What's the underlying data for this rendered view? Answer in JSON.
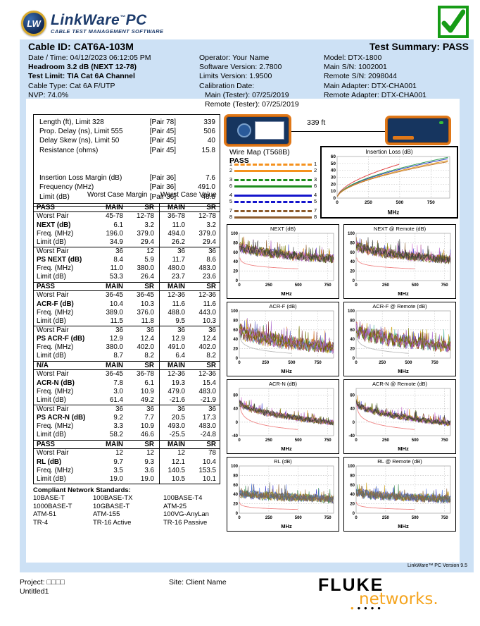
{
  "logo": {
    "badge": "LW",
    "title": "LinkWare",
    "tm": "™",
    "pc": "PC",
    "subtitle": "CABLE TEST MANAGEMENT SOFTWARE"
  },
  "header": {
    "cable_id": "Cable ID: CAT6A-103M",
    "test_summary": "Test Summary: PASS",
    "left_lines": [
      {
        "text": "Date / Time: 04/12/2023  06:12:05 PM",
        "bold": false
      },
      {
        "text": "Headroom 3.2 dB (NEXT 12-78)",
        "bold": true
      },
      {
        "text": "Test Limit: TIA Cat 6A Channel",
        "bold": true
      },
      {
        "text": "Cable Type: Cat 6A F/UTP",
        "bold": false
      },
      {
        "text": "NVP: 74.0%",
        "bold": false
      }
    ],
    "mid_lines": [
      {
        "text": "Operator: Your Name",
        "indent": false
      },
      {
        "text": "Software Version: 2.7800",
        "indent": false
      },
      {
        "text": "Limits Version: 1.9500",
        "indent": false
      },
      {
        "text": "Calibration Date:",
        "indent": false
      },
      {
        "text": "Main (Tester): 07/25/2019",
        "indent": true
      },
      {
        "text": "Remote (Tester): 07/25/2019",
        "indent": true
      }
    ],
    "right_lines": [
      "Model: DTX-1800",
      "Main S/N: 1002001",
      "Remote S/N: 2098044",
      "Main Adapter: DTX-CHA001",
      "Remote Adapter: DTX-CHA001"
    ]
  },
  "summary_box": {
    "rows": [
      {
        "label": "Length (ft), Limit 328",
        "pair": "[Pair 78]",
        "value": "339"
      },
      {
        "label": "Prop. Delay (ns), Limit 555",
        "pair": "[Pair 45]",
        "value": "506"
      },
      {
        "label": "Delay Skew (ns), Limit 50",
        "pair": "[Pair 45]",
        "value": "40"
      },
      {
        "label": "Resistance (ohms)",
        "pair": "[Pair 45]",
        "value": "15.8"
      },
      {
        "label": "",
        "pair": "",
        "value": ""
      },
      {
        "label": "",
        "pair": "",
        "value": ""
      },
      {
        "label": "Insertion Loss Margin (dB)",
        "pair": "[Pair 36]",
        "value": "7.6"
      },
      {
        "label": "Frequency (MHz)",
        "pair": "[Pair 36]",
        "value": "491.0"
      },
      {
        "label": "Limit (dB)",
        "pair": "[Pair 36]",
        "value": "48.8"
      }
    ]
  },
  "link_graphic": {
    "length_label": "339 ft"
  },
  "wiremap": {
    "title": "Wire Map (T568B)",
    "status": "PASS",
    "wires": [
      {
        "pin": "1",
        "color": "#f5921e",
        "dashed": true
      },
      {
        "pin": "2",
        "color": "#f5921e",
        "dashed": false
      },
      {
        "pin": "3",
        "color": "#1e8c1e",
        "dashed": true
      },
      {
        "pin": "6",
        "color": "#1e8c1e",
        "dashed": false
      },
      {
        "pin": "4",
        "color": "#1414cc",
        "dashed": false
      },
      {
        "pin": "5",
        "color": "#1414cc",
        "dashed": true
      },
      {
        "pin": "7",
        "color": "#8b5a2b",
        "dashed": true
      },
      {
        "pin": "8",
        "color": "#8b5a2b",
        "dashed": false
      },
      {
        "pin": "S",
        "color": "#444444",
        "dashed": false
      }
    ]
  },
  "col_headers": {
    "margin": "Worst Case Margin",
    "value": "Worst Case Value"
  },
  "tables": [
    {
      "status": "PASS",
      "cols": [
        "MAIN",
        "SR",
        "MAIN",
        "SR"
      ],
      "groups": [
        {
          "rows": [
            {
              "label": "Worst Pair",
              "bold": false,
              "vals": [
                "45-78",
                "12-78",
                "36-78",
                "12-78"
              ]
            },
            {
              "label": "NEXT (dB)",
              "bold": true,
              "vals": [
                "6.1",
                "3.2",
                "11.0",
                "3.2"
              ]
            },
            {
              "label": "Freq. (MHz)",
              "bold": false,
              "vals": [
                "196.0",
                "379.0",
                "494.0",
                "379.0"
              ]
            },
            {
              "label": "Limit (dB)",
              "bold": false,
              "vals": [
                "34.9",
                "29.4",
                "26.2",
                "29.4"
              ]
            }
          ]
        },
        {
          "rows": [
            {
              "label": "Worst Pair",
              "bold": false,
              "vals": [
                "36",
                "12",
                "36",
                "36"
              ]
            },
            {
              "label": "PS NEXT (dB)",
              "bold": true,
              "vals": [
                "8.4",
                "5.9",
                "11.7",
                "8.6"
              ]
            },
            {
              "label": "Freq. (MHz)",
              "bold": false,
              "vals": [
                "11.0",
                "380.0",
                "480.0",
                "483.0"
              ]
            },
            {
              "label": "Limit (dB)",
              "bold": false,
              "vals": [
                "53.3",
                "26.4",
                "23.7",
                "23.6"
              ]
            }
          ]
        }
      ]
    },
    {
      "status": "PASS",
      "cols": [
        "MAIN",
        "SR",
        "MAIN",
        "SR"
      ],
      "groups": [
        {
          "rows": [
            {
              "label": "Worst Pair",
              "bold": false,
              "vals": [
                "36-45",
                "36-45",
                "12-36",
                "12-36"
              ]
            },
            {
              "label": "ACR-F (dB)",
              "bold": true,
              "vals": [
                "10.4",
                "10.3",
                "11.6",
                "11.6"
              ]
            },
            {
              "label": "Freq. (MHz)",
              "bold": false,
              "vals": [
                "389.0",
                "376.0",
                "488.0",
                "443.0"
              ]
            },
            {
              "label": "Limit (dB)",
              "bold": false,
              "vals": [
                "11.5",
                "11.8",
                "9.5",
                "10.3"
              ]
            }
          ]
        },
        {
          "rows": [
            {
              "label": "Worst Pair",
              "bold": false,
              "vals": [
                "36",
                "36",
                "36",
                "36"
              ]
            },
            {
              "label": "PS ACR-F (dB)",
              "bold": true,
              "vals": [
                "12.9",
                "12.4",
                "12.9",
                "12.4"
              ]
            },
            {
              "label": "Freq. (MHz)",
              "bold": false,
              "vals": [
                "380.0",
                "402.0",
                "491.0",
                "402.0"
              ]
            },
            {
              "label": "Limit (dB)",
              "bold": false,
              "vals": [
                "8.7",
                "8.2",
                "6.4",
                "8.2"
              ]
            }
          ]
        }
      ]
    },
    {
      "status": "N/A",
      "cols": [
        "MAIN",
        "SR",
        "MAIN",
        "SR"
      ],
      "groups": [
        {
          "rows": [
            {
              "label": "Worst Pair",
              "bold": false,
              "vals": [
                "36-45",
                "36-78",
                "12-36",
                "12-36"
              ]
            },
            {
              "label": "ACR-N (dB)",
              "bold": true,
              "vals": [
                "7.8",
                "6.1",
                "19.3",
                "15.4"
              ]
            },
            {
              "label": "Freq. (MHz)",
              "bold": false,
              "vals": [
                "3.0",
                "10.9",
                "479.0",
                "483.0"
              ]
            },
            {
              "label": "Limit (dB)",
              "bold": false,
              "vals": [
                "61.4",
                "49.2",
                "-21.6",
                "-21.9"
              ]
            }
          ]
        },
        {
          "rows": [
            {
              "label": "Worst Pair",
              "bold": false,
              "vals": [
                "36",
                "36",
                "36",
                "36"
              ]
            },
            {
              "label": "PS ACR-N (dB)",
              "bold": true,
              "vals": [
                "9.2",
                "7.7",
                "20.5",
                "17.3"
              ]
            },
            {
              "label": "Freq. (MHz)",
              "bold": false,
              "vals": [
                "3.3",
                "10.9",
                "493.0",
                "483.0"
              ]
            },
            {
              "label": "Limit (dB)",
              "bold": false,
              "vals": [
                "58.2",
                "46.6",
                "-25.5",
                "-24.8"
              ]
            }
          ]
        }
      ]
    },
    {
      "status": "PASS",
      "cols": [
        "MAIN",
        "SR",
        "MAIN",
        "SR"
      ],
      "groups": [
        {
          "rows": [
            {
              "label": "Worst Pair",
              "bold": false,
              "vals": [
                "12",
                "12",
                "12",
                "78"
              ]
            },
            {
              "label": "RL (dB)",
              "bold": true,
              "vals": [
                "9.7",
                "9.3",
                "12.1",
                "10.4"
              ]
            },
            {
              "label": "Freq. (MHz)",
              "bold": false,
              "vals": [
                "3.5",
                "3.6",
                "140.5",
                "153.5"
              ]
            },
            {
              "label": "Limit (dB)",
              "bold": false,
              "vals": [
                "19.0",
                "19.0",
                "10.5",
                "10.1"
              ]
            }
          ]
        }
      ]
    }
  ],
  "standards": {
    "title": "Compliant Network Standards:",
    "rows": [
      [
        "10BASE-T",
        "100BASE-TX",
        "100BASE-T4"
      ],
      [
        "1000BASE-T",
        "10GBASE-T",
        "ATM-25"
      ],
      [
        "ATM-51",
        "ATM-155",
        "100VG-AnyLan"
      ],
      [
        "TR-4",
        "TR-16 Active",
        "TR-16 Passive"
      ]
    ]
  },
  "footer": {
    "version_note": "LinkWare™ PC Version 9.5",
    "project": "Project: □□□□",
    "project_name": "Untitled1",
    "site": "Site: Client Name",
    "fluke": "FLUKE",
    "networks": "networks."
  },
  "chart_data": [
    {
      "type": "line",
      "title": "Insertion Loss (dB)",
      "xlabel": "MHz",
      "xlim": [
        0,
        900
      ],
      "x_ticks": [
        0,
        250,
        500,
        750
      ],
      "ylim": [
        0,
        60
      ],
      "y_ticks": [
        0,
        10,
        20,
        30,
        40,
        50,
        60
      ],
      "note": "smooth loss curves per pair rising with frequency; red limit curve ends at 500 MHz (49 dB)",
      "series": [
        {
          "name": "limit",
          "color": "#e04545",
          "scale": 20.2,
          "exp": 0.55,
          "x_end": 500
        },
        {
          "name": "pair-36",
          "color": "#2d3ec0",
          "scale": 17.1,
          "exp": 0.55,
          "x_end": 890
        },
        {
          "name": "pair-45",
          "color": "#2f9e55",
          "scale": 17.7,
          "exp": 0.55,
          "x_end": 890
        },
        {
          "name": "pair-12",
          "color": "#e09a25",
          "scale": 16.3,
          "exp": 0.55,
          "x_end": 890
        },
        {
          "name": "pair-78",
          "color": "#c87b2e",
          "scale": 15.8,
          "exp": 0.55,
          "x_end": 890
        }
      ]
    },
    {
      "type": "sweep",
      "title": "NEXT (dB)",
      "xlabel": "MHz",
      "xlim": [
        0,
        800
      ],
      "x_ticks": [
        0,
        250,
        500,
        750
      ],
      "ylim": [
        0,
        100
      ],
      "y_ticks": [
        0,
        20,
        40,
        60,
        80,
        100
      ],
      "band_start": 74,
      "band_end": 46,
      "noise_amp": 16,
      "spike_amp": 26,
      "spike_p": 0.05,
      "osc": 4,
      "seed": 11,
      "palette": [
        "#4444cc",
        "#b05fc0",
        "#7a7a00",
        "#e09020",
        "#8b5a2b",
        "#d070d0",
        "#556b2f",
        "#3a3a3a"
      ],
      "limit": {
        "color": "#ef8585",
        "a": 55.2,
        "b": 11.2,
        "x_start": 4,
        "x_end": 500
      }
    },
    {
      "type": "sweep",
      "title": "NEXT @ Remote (dB)",
      "xlabel": "MHz",
      "xlim": [
        0,
        800
      ],
      "x_ticks": [
        0,
        250,
        500,
        750
      ],
      "ylim": [
        0,
        100
      ],
      "y_ticks": [
        0,
        20,
        40,
        60,
        80,
        100
      ],
      "band_start": 76,
      "band_end": 44,
      "noise_amp": 16,
      "spike_amp": 26,
      "spike_p": 0.05,
      "osc": 4,
      "seed": 22,
      "palette": [
        "#4444cc",
        "#b05fc0",
        "#7a7a00",
        "#e09020",
        "#8b5a2b",
        "#d070d0",
        "#556b2f",
        "#3a3a3a"
      ],
      "limit": {
        "color": "#ef8585",
        "a": 55.2,
        "b": 11.2,
        "x_start": 4,
        "x_end": 500
      }
    },
    {
      "type": "sweep",
      "title": "ACR-F (dB)",
      "xlabel": "MHz",
      "xlim": [
        0,
        900
      ],
      "x_ticks": [
        0,
        250,
        500,
        750
      ],
      "ylim": [
        0,
        100
      ],
      "y_ticks": [
        0,
        20,
        40,
        60,
        80,
        100
      ],
      "band_start": 62,
      "band_end": 22,
      "noise_amp": 18,
      "spike_amp": 30,
      "spike_p": 0.06,
      "osc": 9,
      "seed": 33,
      "palette": [
        "#9040a0",
        "#c8a000",
        "#40b090",
        "#d06820",
        "#6060c0",
        "#803030",
        "#b070d0",
        "#707000"
      ],
      "limit": {
        "color": "#bbbbbb",
        "a": 60.8,
        "b": 18.8,
        "x_start": 3,
        "x_end": 500
      }
    },
    {
      "type": "sweep",
      "title": "ACR-F @ Remote (dB)",
      "xlabel": "MHz",
      "xlim": [
        0,
        900
      ],
      "x_ticks": [
        0,
        250,
        500,
        750
      ],
      "ylim": [
        0,
        100
      ],
      "y_ticks": [
        0,
        20,
        40,
        60,
        80,
        100
      ],
      "band_start": 64,
      "band_end": 24,
      "noise_amp": 18,
      "spike_amp": 30,
      "spike_p": 0.06,
      "osc": 9,
      "seed": 44,
      "palette": [
        "#9040a0",
        "#c8a000",
        "#40b090",
        "#d06820",
        "#6060c0",
        "#803030",
        "#b070d0",
        "#707000"
      ],
      "limit": {
        "color": "#bbbbbb",
        "a": 60.8,
        "b": 18.8,
        "x_start": 3,
        "x_end": 500
      }
    },
    {
      "type": "sweep",
      "title": "ACR-N (dB)",
      "xlabel": "MHz",
      "xlim": [
        0,
        800
      ],
      "x_ticks": [
        0,
        250,
        500,
        750
      ],
      "ylim": [
        -40,
        100
      ],
      "y_ticks": [
        -40,
        0,
        40,
        80
      ],
      "band_start": 62,
      "band_end": -2,
      "noise_amp": 14,
      "spike_amp": 22,
      "spike_p": 0.05,
      "osc": 4,
      "seed": 55,
      "palette": [
        "#4444cc",
        "#b05fc0",
        "#7a7a00",
        "#e09020",
        "#8b5a2b",
        "#d070d0",
        "#556b2f",
        "#3a3a3a"
      ],
      "limit": {
        "color": "#ef8585",
        "a": 76.5,
        "b": 36.5,
        "x_start": 6,
        "x_end": 500
      }
    },
    {
      "type": "sweep",
      "title": "ACR-N @ Remote (dB)",
      "xlabel": "MHz",
      "xlim": [
        0,
        800
      ],
      "x_ticks": [
        0,
        250,
        500,
        750
      ],
      "ylim": [
        -40,
        100
      ],
      "y_ticks": [
        -40,
        0,
        40,
        80
      ],
      "band_start": 60,
      "band_end": -4,
      "noise_amp": 14,
      "spike_amp": 22,
      "spike_p": 0.05,
      "osc": 4,
      "seed": 66,
      "palette": [
        "#4444cc",
        "#b05fc0",
        "#7a7a00",
        "#e09020",
        "#8b5a2b",
        "#d070d0",
        "#556b2f",
        "#3a3a3a"
      ],
      "limit": {
        "color": "#ef8585",
        "a": 76.5,
        "b": 36.5,
        "x_start": 6,
        "x_end": 500
      }
    },
    {
      "type": "sweep",
      "title": "RL (dB)",
      "xlabel": "MHz",
      "xlim": [
        0,
        800
      ],
      "x_ticks": [
        0,
        250,
        500,
        750
      ],
      "ylim": [
        0,
        100
      ],
      "y_ticks": [
        0,
        20,
        40,
        60,
        80,
        100
      ],
      "band_start": 44,
      "band_end": 30,
      "noise_amp": 16,
      "spike_amp": 22,
      "spike_p": 0.04,
      "osc": 3,
      "seed": 77,
      "palette": [
        "#3a3acc",
        "#8b5a2b",
        "#caa020",
        "#3c8c50",
        "#5577dd",
        "#a06a30",
        "#666666"
      ],
      "limit": {
        "color": "#ef8585",
        "a": 25.5,
        "b": 6.5,
        "x_start": 2,
        "x_end": 500
      }
    },
    {
      "type": "sweep",
      "title": "RL @ Remote (dB)",
      "xlabel": "MHz",
      "xlim": [
        0,
        800
      ],
      "x_ticks": [
        0,
        250,
        500,
        750
      ],
      "ylim": [
        0,
        100
      ],
      "y_ticks": [
        0,
        20,
        40,
        60,
        80,
        100
      ],
      "band_start": 45,
      "band_end": 30,
      "noise_amp": 16,
      "spike_amp": 22,
      "spike_p": 0.04,
      "osc": 3,
      "seed": 88,
      "palette": [
        "#3a3acc",
        "#8b5a2b",
        "#caa020",
        "#3c8c50",
        "#5577dd",
        "#a06a30",
        "#666666"
      ],
      "limit": {
        "color": "#ef8585",
        "a": 25.5,
        "b": 6.5,
        "x_start": 2,
        "x_end": 500
      }
    }
  ]
}
